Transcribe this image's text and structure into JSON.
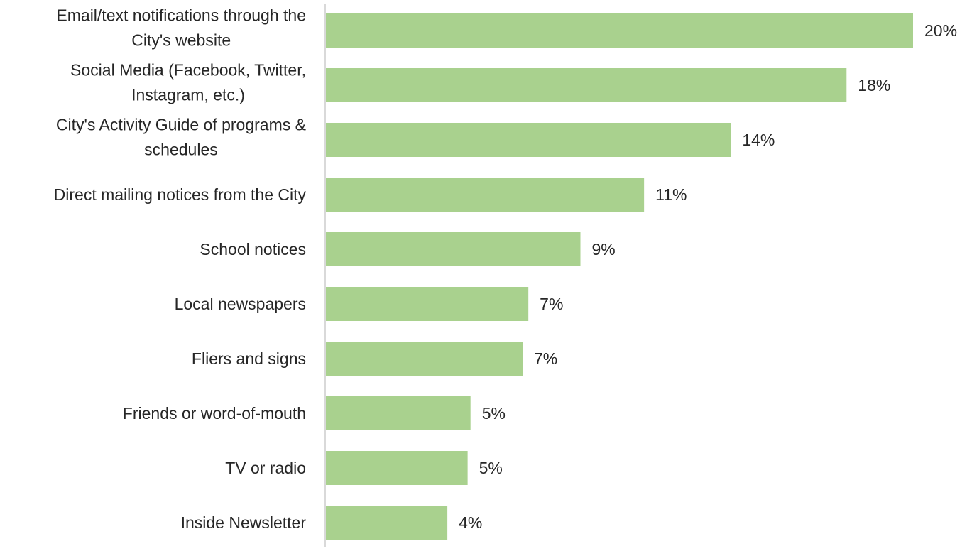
{
  "chart_data": {
    "type": "bar",
    "orientation": "horizontal",
    "categories": [
      [
        "Email/text notifications through the",
        "City's website"
      ],
      [
        "Social Media (Facebook, Twitter,",
        "Instagram, etc.)"
      ],
      [
        "City's Activity Guide of programs &",
        "schedules"
      ],
      [
        "Direct mailing notices from the City"
      ],
      [
        "School notices"
      ],
      [
        "Local newspapers"
      ],
      [
        "Fliers and signs"
      ],
      [
        "Friends or word-of-mouth"
      ],
      [
        "TV or radio"
      ],
      [
        "Inside Newsletter"
      ]
    ],
    "values": [
      20.3,
      18.0,
      14.0,
      11.0,
      8.8,
      7.0,
      6.8,
      5.0,
      4.9,
      4.2
    ],
    "value_labels": [
      "20%",
      "18%",
      "14%",
      "11%",
      "9%",
      "7%",
      "7%",
      "5%",
      "5%",
      "4%"
    ],
    "title": "",
    "xlabel": "",
    "ylabel": "",
    "xlim": [
      0,
      20.3
    ],
    "grid": false,
    "legend": "none",
    "colors": {
      "bar": "#a9d18e",
      "axis": "#d9d9d9",
      "text": "#262626"
    }
  }
}
